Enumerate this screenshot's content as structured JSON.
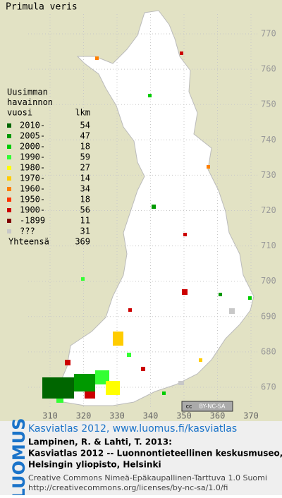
{
  "title": "Primula veris",
  "legend": {
    "heading": [
      "Uusimman",
      "havainnon",
      "vuosi"
    ],
    "count_heading": "lkm",
    "rows": [
      {
        "label": "2010-",
        "count": 54,
        "color": "#006600"
      },
      {
        "label": "2005-",
        "count": 47,
        "color": "#009900"
      },
      {
        "label": "2000-",
        "count": 18,
        "color": "#00cc00"
      },
      {
        "label": "1990-",
        "count": 59,
        "color": "#33ff33"
      },
      {
        "label": "1980-",
        "count": 27,
        "color": "#ffff00"
      },
      {
        "label": "1970-",
        "count": 14,
        "color": "#ffcc00"
      },
      {
        "label": "1960-",
        "count": 34,
        "color": "#ff8000"
      },
      {
        "label": "1950-",
        "count": 18,
        "color": "#ff3300"
      },
      {
        "label": "1900-",
        "count": 56,
        "color": "#cc0000"
      },
      {
        "label": "-1899",
        "count": 11,
        "color": "#800000"
      },
      {
        "label": "???",
        "count": 31,
        "color": "#c8c8c8"
      }
    ],
    "total_label": "Yhteensä",
    "total": 369
  },
  "map": {
    "yticks": [
      770,
      760,
      750,
      740,
      730,
      720,
      710,
      700,
      690,
      680,
      670
    ],
    "xticks": [
      310,
      320,
      330,
      340,
      350,
      360,
      370
    ]
  },
  "badge": [
    "cc",
    "BY-NC-SA"
  ],
  "logo": "LUOMUS",
  "footer": {
    "link": "Kasviatlas 2012, www.luomus.fi/kasviatlas",
    "citation": [
      "Lampinen, R. & Lahti, T. 2013:",
      "Kasviatlas 2012 -- Luonnontieteellinen keskusmuseo,",
      "Helsingin yliopisto, Helsinki"
    ],
    "license": [
      "Creative Commons Nimeä-Epäkaupallinen-Tarttuva 1.0 Suomi",
      "http://creativecommons.org/licenses/by-nc-sa/1.0/fi"
    ]
  }
}
